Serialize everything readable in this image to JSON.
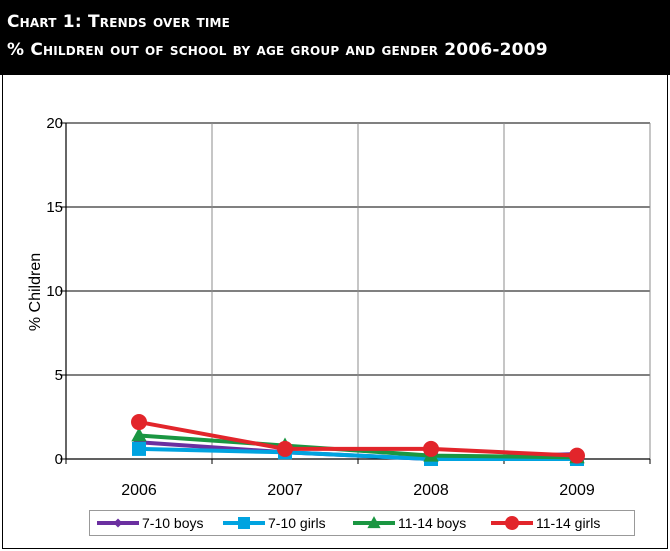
{
  "header": {
    "line1": "Chart 1: Trends over time",
    "line2": "% Children out of school by age group and gender 2006-2009"
  },
  "chart_data": {
    "type": "line",
    "x": [
      "2006",
      "2007",
      "2008",
      "2009"
    ],
    "ylabel": "% Children",
    "xlabel": "",
    "ylim": [
      0,
      20
    ],
    "yticks": [
      "0",
      "5",
      "10",
      "15",
      "20"
    ],
    "grid": true,
    "legend": "bottom",
    "series": [
      {
        "name": "7-10 boys",
        "values": [
          1.0,
          0.4,
          0.0,
          0.3
        ],
        "color": "#6b2fa0",
        "marker": "diamond"
      },
      {
        "name": "7-10 girls",
        "values": [
          0.6,
          0.4,
          0.0,
          0.0
        ],
        "color": "#00a3e0",
        "marker": "square"
      },
      {
        "name": "11-14 boys",
        "values": [
          1.4,
          0.8,
          0.2,
          0.1
        ],
        "color": "#1a9641",
        "marker": "triangle"
      },
      {
        "name": "11-14 girls",
        "values": [
          2.2,
          0.6,
          0.6,
          0.2
        ],
        "color": "#e2252b",
        "marker": "circle"
      }
    ]
  }
}
